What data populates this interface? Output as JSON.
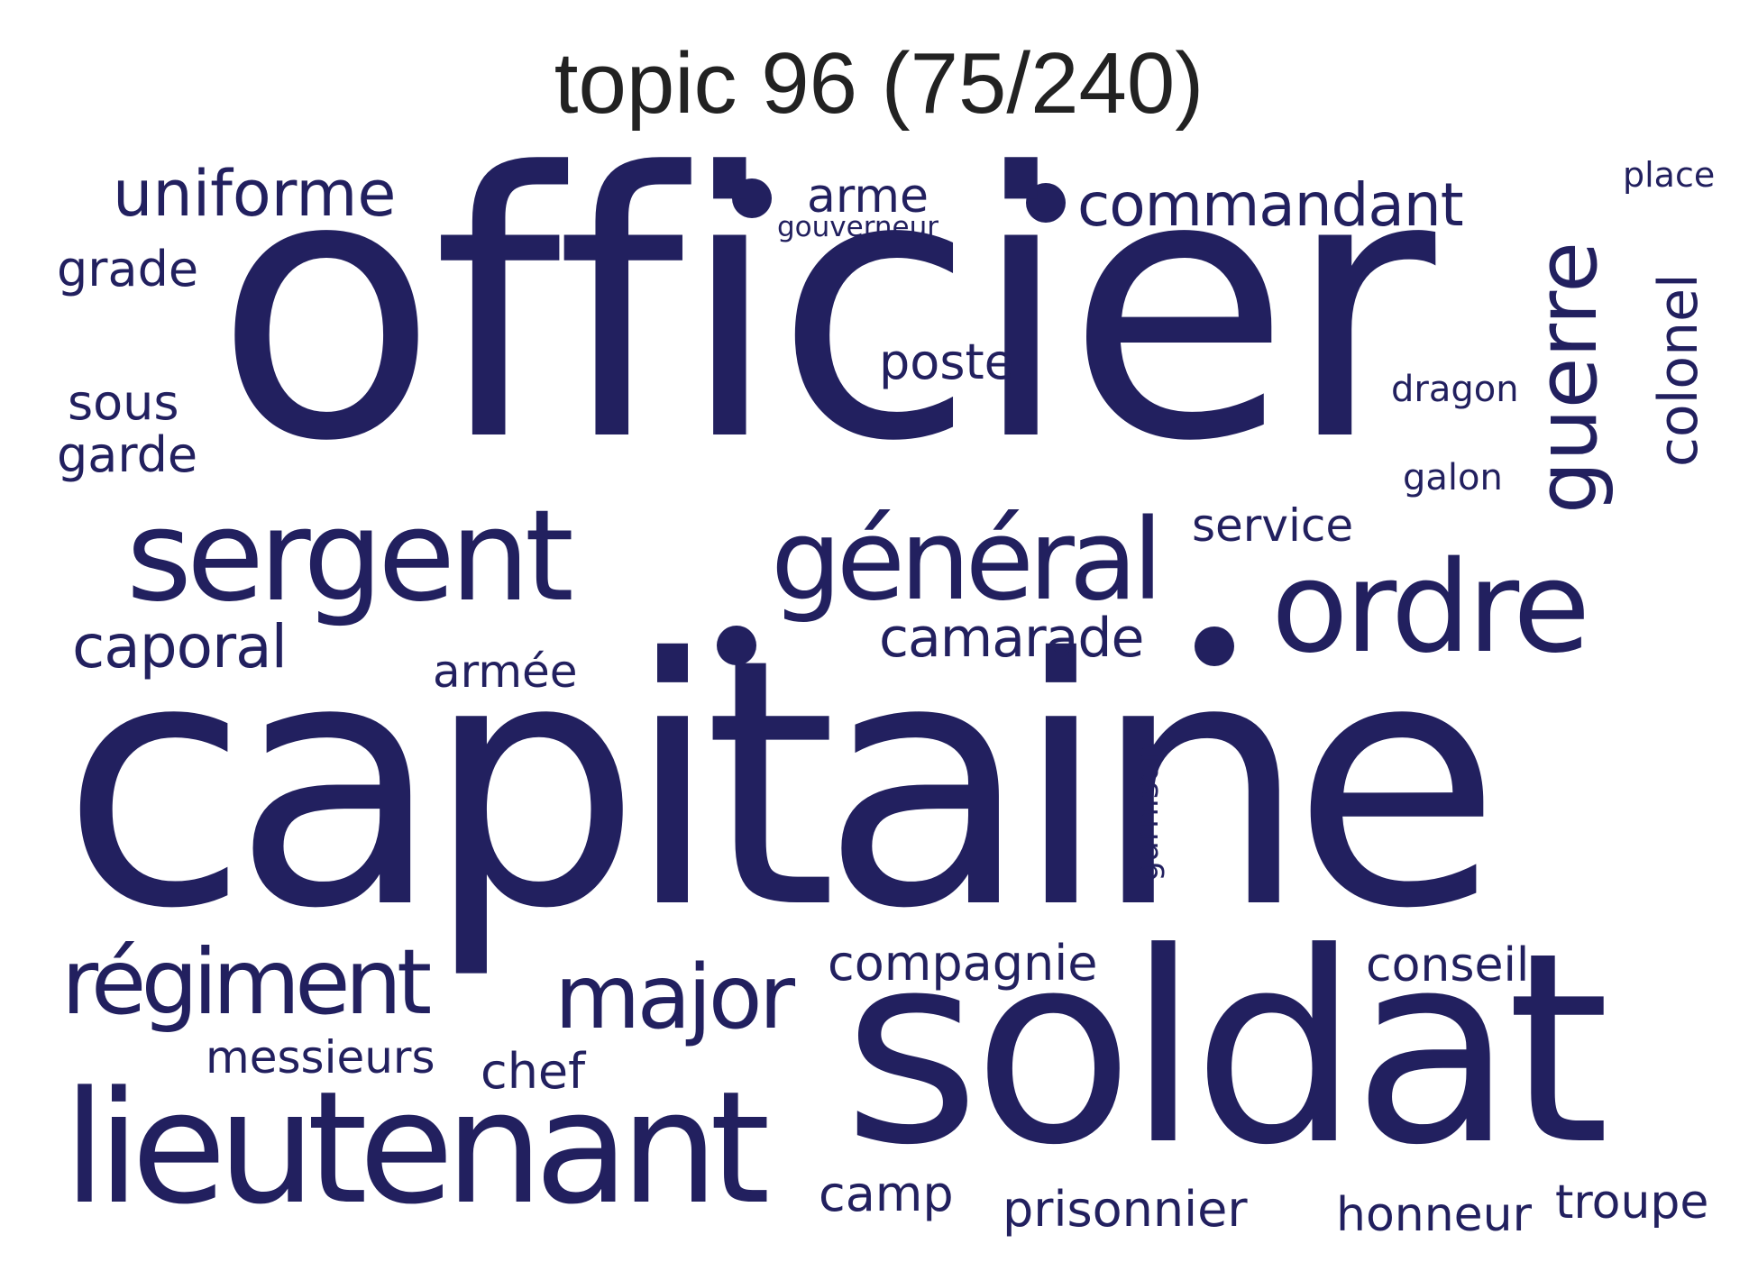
{
  "title": "topic 96 (75/240)",
  "colors": {
    "words": "#22205f",
    "title": "#222222",
    "background": "#ffffff"
  },
  "words": {
    "officier": "officier",
    "capitaine": "capitaine",
    "soldat": "soldat",
    "lieutenant": "lieutenant",
    "sergent": "sergent",
    "general": "général",
    "ordre": "ordre",
    "guerre": "guerre",
    "regiment": "régiment",
    "major": "major",
    "uniforme": "uniforme",
    "commandant": "commandant",
    "caporal": "caporal",
    "camarade": "camarade",
    "colonel": "colonel",
    "grade": "grade",
    "sous": "sous",
    "garde": "garde",
    "poste": "poste",
    "arme": "arme",
    "gouverneur": "gouverneur",
    "place": "place",
    "dragon": "dragon",
    "galon": "galon",
    "service": "service",
    "armee": "armée",
    "garnison": "garnison",
    "compagnie": "compagnie",
    "conseil": "conseil",
    "messieurs": "messieurs",
    "chef": "chef",
    "camp": "camp",
    "prisonnier": "prisonnier",
    "honneur": "honneur",
    "troupe": "troupe"
  }
}
